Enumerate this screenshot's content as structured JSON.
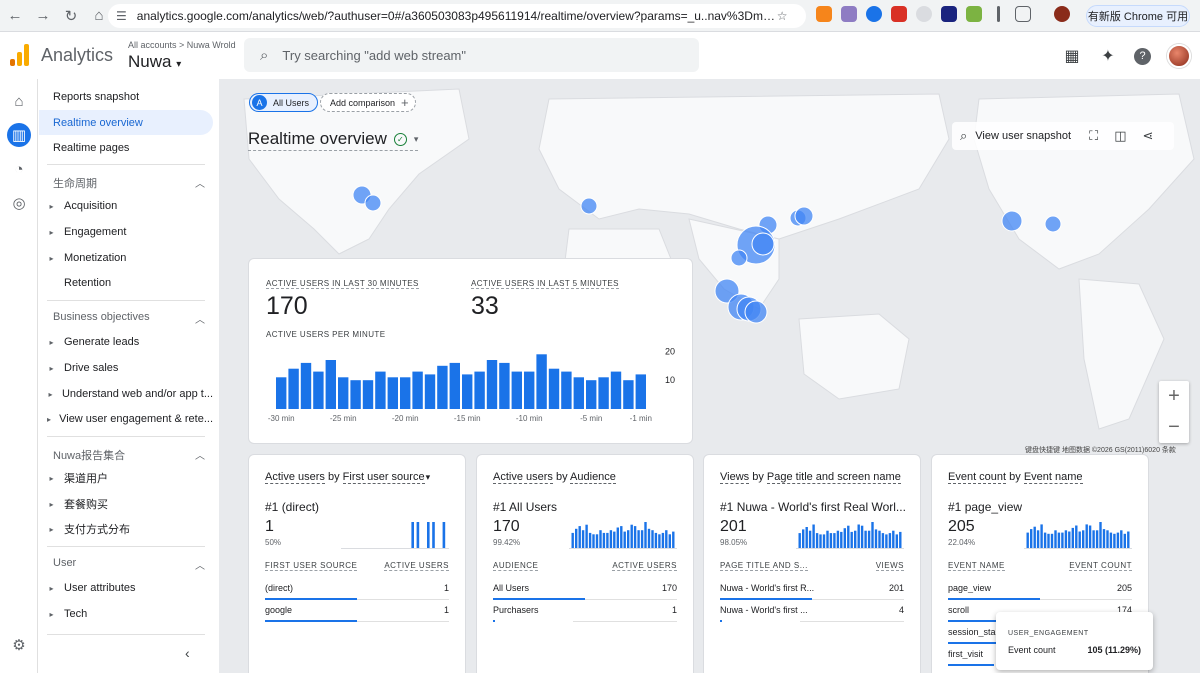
{
  "browser": {
    "url": "analytics.google.com/analytics/web/?authuser=0#/a360503083p495611914/realtime/overview?params=_u..nav%3Dmaui%26_u.date0...",
    "update_label": "有新版 Chrome 可用"
  },
  "header": {
    "app_name": "Analytics",
    "breadcrumb": "All accounts  >  Nuwa Wrold",
    "property": "Nuwa",
    "search_placeholder": "Try searching \"add web stream\""
  },
  "sidebar": {
    "top_links": [
      "Reports snapshot",
      "Realtime overview",
      "Realtime pages"
    ],
    "sections": [
      {
        "title": "生命周期",
        "items": [
          "Acquisition",
          "Engagement",
          "Monetization"
        ],
        "plain": [
          "Retention"
        ]
      },
      {
        "title": "Business objectives",
        "items": [
          "Generate leads",
          "Drive sales",
          "Understand web and/or app t...",
          "View user engagement & rete..."
        ]
      },
      {
        "title": "Nuwa报告集合",
        "items": [
          "渠道用户",
          "套餐购买",
          "支付方式分布"
        ]
      },
      {
        "title": "User",
        "items": [
          "User attributes",
          "Tech"
        ]
      }
    ]
  },
  "toolbar": {
    "all_users": "All Users",
    "chip_letter": "A",
    "add_comparison": "Add comparison",
    "page_title": "Realtime overview",
    "view_snapshot": "View user snapshot"
  },
  "map": {
    "attribution": "键盘快捷键    地图数据 ©2026 GS(2011)6020    条款"
  },
  "overview_card": {
    "label_30": "ACTIVE USERS IN LAST 30 MINUTES",
    "value_30": "170",
    "label_5": "ACTIVE USERS IN LAST 5 MINUTES",
    "value_5": "33",
    "per_minute_label": "ACTIVE USERS PER MINUTE",
    "chart_data": {
      "type": "bar",
      "title": "ACTIVE USERS PER MINUTE",
      "categories": [
        "-30 min",
        "-29",
        "-28",
        "-27",
        "-26",
        "-25 min",
        "-24",
        "-23",
        "-22",
        "-21",
        "-20 min",
        "-19",
        "-18",
        "-17",
        "-16",
        "-15 min",
        "-14",
        "-13",
        "-12",
        "-11",
        "-10 min",
        "-9",
        "-8",
        "-7",
        "-6",
        "-5 min",
        "-4",
        "-3",
        "-2",
        "-1 min"
      ],
      "values": [
        11,
        14,
        16,
        13,
        17,
        11,
        10,
        10,
        13,
        11,
        11,
        13,
        12,
        15,
        16,
        12,
        13,
        17,
        16,
        13,
        13,
        19,
        14,
        13,
        11,
        10,
        11,
        13,
        10,
        12
      ],
      "x_tick_labels": [
        "-30 min",
        "-25 min",
        "-20 min",
        "-15 min",
        "-10 min",
        "-5 min",
        "-1 min"
      ],
      "y_ticks": [
        "20",
        "10"
      ],
      "ylim": [
        0,
        25
      ]
    }
  },
  "cards": [
    {
      "title_metric": "Active users",
      "title_by": "by",
      "title_dim": "First user source",
      "rank": "#1",
      "top_name": "(direct)",
      "top_value": "1",
      "top_pct": "50%",
      "col1": "FIRST USER SOURCE",
      "col2": "ACTIVE USERS",
      "rows": [
        {
          "name": "(direct)",
          "value": "1",
          "share": 1.0
        },
        {
          "name": "google",
          "value": "1",
          "share": 1.0
        }
      ],
      "spark": [
        0,
        0,
        0,
        0,
        0,
        0,
        0,
        0,
        0,
        0,
        0,
        0,
        0,
        1,
        1,
        0,
        1,
        1,
        0,
        1
      ]
    },
    {
      "title_metric": "Active users",
      "title_by": "by",
      "title_dim": "Audience",
      "rank": "#1",
      "top_name": "All Users",
      "top_value": "170",
      "top_pct": "99.42%",
      "col1": "AUDIENCE",
      "col2": "ACTIVE USERS",
      "rows": [
        {
          "name": "All Users",
          "value": "170",
          "share": 1.0
        },
        {
          "name": "Purchasers",
          "value": "1",
          "share": 0.01
        }
      ],
      "spark": [
        11,
        14,
        16,
        13,
        17,
        11,
        10,
        10,
        13,
        11,
        11,
        13,
        12,
        15,
        16,
        12,
        13,
        17,
        16,
        13,
        13,
        19,
        14,
        13,
        11,
        10,
        11,
        13,
        10,
        12
      ]
    },
    {
      "title_metric": "Views",
      "title_by": "by",
      "title_dim": "Page title and screen name",
      "rank": "#1",
      "top_name": "Nuwa - World's first Real Worl...",
      "top_value": "201",
      "top_pct": "98.05%",
      "col1": "PAGE TITLE AND S...",
      "col2": "VIEWS",
      "rows": [
        {
          "name": "Nuwa - World's first R...",
          "value": "201",
          "share": 1.0
        },
        {
          "name": "Nuwa - World's first ...",
          "value": "4",
          "share": 0.02
        }
      ],
      "spark": [
        12,
        15,
        17,
        14,
        19,
        12,
        11,
        11,
        14,
        12,
        12,
        14,
        13,
        16,
        18,
        13,
        14,
        19,
        18,
        14,
        14,
        21,
        15,
        14,
        12,
        11,
        12,
        14,
        11,
        13
      ]
    },
    {
      "title_metric": "Event count",
      "title_by": "by",
      "title_dim": "Event name",
      "rank": "#1",
      "top_name": "page_view",
      "top_value": "205",
      "top_pct": "22.04%",
      "col1": "EVENT NAME",
      "col2": "EVENT COUNT",
      "rows": [
        {
          "name": "page_view",
          "value": "205",
          "share": 1.0
        },
        {
          "name": "scroll",
          "value": "174",
          "share": 0.85
        },
        {
          "name": "session_sta...",
          "value": "",
          "share": 0.6
        },
        {
          "name": "first_visit",
          "value": "",
          "share": 0.5
        }
      ],
      "spark": [
        13,
        16,
        18,
        15,
        20,
        13,
        12,
        12,
        15,
        13,
        13,
        15,
        14,
        17,
        19,
        14,
        15,
        20,
        19,
        15,
        15,
        22,
        16,
        15,
        13,
        12,
        13,
        15,
        12,
        14
      ]
    }
  ],
  "tooltip": {
    "title": "USER_ENGAGEMENT",
    "label": "Event count",
    "value": "105 (11.29%)"
  },
  "colors": {
    "accent": "#1a73e8",
    "bar": "#1a73e8",
    "map_dot": "#4285f4"
  }
}
